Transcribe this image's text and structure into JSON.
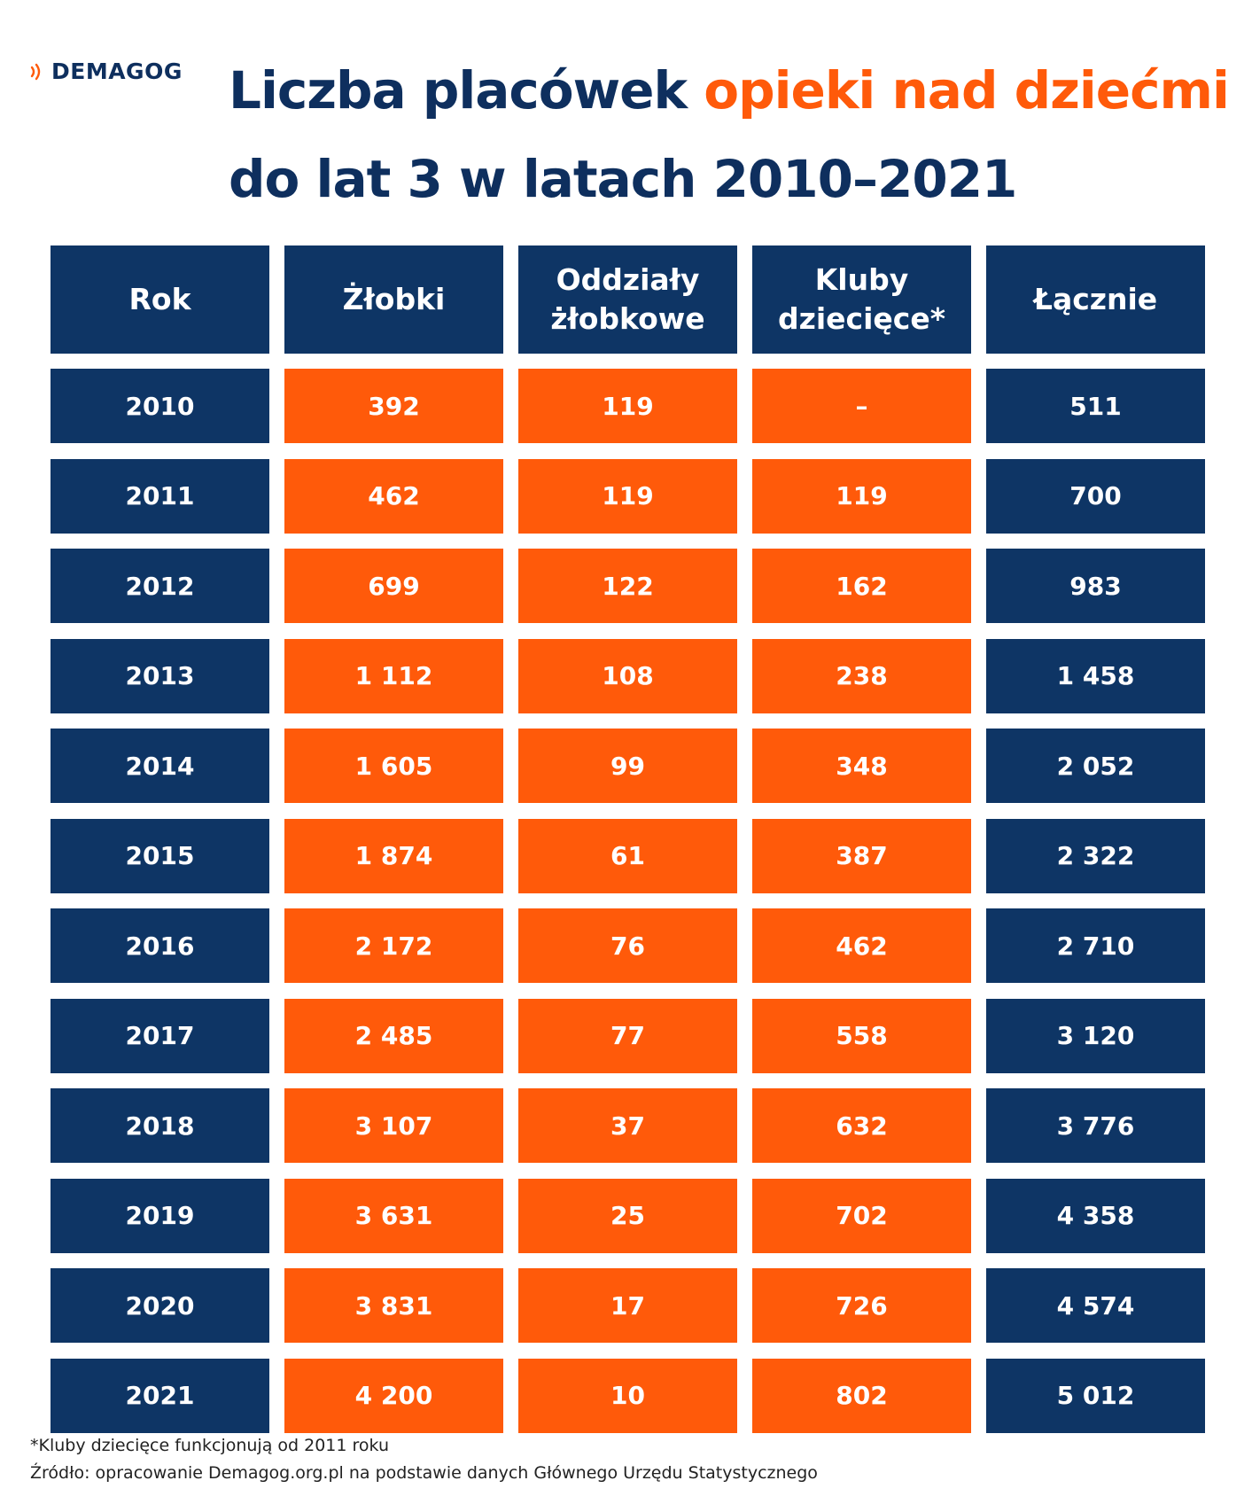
{
  "brand": {
    "name": "DEMAGOG",
    "accent": "#ff5a0a",
    "navy": "#0e3565"
  },
  "title": {
    "part1": "Liczba placówek ",
    "highlight": "opieki nad dziećmi",
    "part2": "do lat 3 w latach 2010–2021"
  },
  "chart_data": {
    "type": "table",
    "columns": [
      "Rok",
      "Żłobki",
      "Oddziały żłobkowe",
      "Kluby dziecięce*",
      "Łącznie"
    ],
    "rows": [
      [
        "2010",
        "392",
        "119",
        "–",
        "511"
      ],
      [
        "2011",
        "462",
        "119",
        "119",
        "700"
      ],
      [
        "2012",
        "699",
        "122",
        "162",
        "983"
      ],
      [
        "2013",
        "1 112",
        "108",
        "238",
        "1 458"
      ],
      [
        "2014",
        "1 605",
        "99",
        "348",
        "2 052"
      ],
      [
        "2015",
        "1 874",
        "61",
        "387",
        "2 322"
      ],
      [
        "2016",
        "2 172",
        "76",
        "462",
        "2 710"
      ],
      [
        "2017",
        "2 485",
        "77",
        "558",
        "3 120"
      ],
      [
        "2018",
        "3 107",
        "37",
        "632",
        "3 776"
      ],
      [
        "2019",
        "3 631",
        "25",
        "702",
        "4 358"
      ],
      [
        "2020",
        "3 831",
        "17",
        "726",
        "4 574"
      ],
      [
        "2021",
        "4 200",
        "10",
        "802",
        "5 012"
      ]
    ]
  },
  "footnote": "*Kluby dziecięce funkcjonują od 2011 roku",
  "source": "Źródło: opracowanie Demagog.org.pl na podstawie danych Głównego Urzędu Statystycznego"
}
